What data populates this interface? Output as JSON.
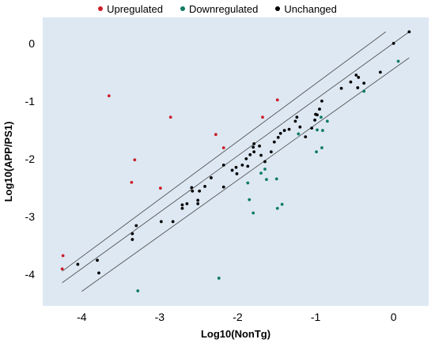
{
  "chart_data": {
    "type": "scatter",
    "xlabel": "Log10(NonTg)",
    "ylabel": "Log10(APP/PS1)",
    "xlim": [
      -4.5,
      0.45
    ],
    "ylim": [
      -4.55,
      0.45
    ],
    "x_ticks": [
      -4,
      -3,
      -2,
      -1,
      0
    ],
    "y_ticks": [
      0,
      -1,
      -2,
      -3,
      -4
    ],
    "x_tick_labels": [
      "-4",
      "-3",
      "-2",
      "-1",
      "0"
    ],
    "y_tick_labels": [
      "0",
      "-1",
      "-2",
      "-3",
      "-4"
    ],
    "background_color": "#dde8f3",
    "grid": false,
    "legend_position": "top",
    "reference_lines": [
      {
        "x": [
          -4.25,
          -0.1
        ],
        "y": [
          -3.95,
          0.2
        ]
      },
      {
        "x": [
          -4.25,
          0.2
        ],
        "y": [
          -4.15,
          0.2
        ]
      },
      {
        "x": [
          -4.0,
          0.2
        ],
        "y": [
          -4.3,
          -0.25
        ]
      }
    ],
    "series": [
      {
        "name": "Upregulated",
        "color": "#cc1f2a",
        "points": [
          [
            -4.24,
            -3.68
          ],
          [
            -4.25,
            -3.91
          ],
          [
            -3.65,
            -0.91
          ],
          [
            -3.32,
            -2.02
          ],
          [
            -3.36,
            -2.41
          ],
          [
            -2.99,
            -2.51
          ],
          [
            -2.86,
            -1.28
          ],
          [
            -2.28,
            -1.58
          ],
          [
            -2.18,
            -1.81
          ],
          [
            -1.68,
            -1.28
          ],
          [
            -1.49,
            -0.98
          ]
        ]
      },
      {
        "name": "Downregulated",
        "color": "#0f7b62",
        "points": [
          [
            -3.28,
            -4.29
          ],
          [
            -2.24,
            -4.07
          ],
          [
            -1.87,
            -2.42
          ],
          [
            -1.85,
            -2.71
          ],
          [
            -1.8,
            -2.94
          ],
          [
            -1.7,
            -2.25
          ],
          [
            -1.65,
            -2.18
          ],
          [
            -1.63,
            -2.36
          ],
          [
            -1.5,
            -2.35
          ],
          [
            -1.49,
            -2.86
          ],
          [
            -1.43,
            -2.79
          ],
          [
            -1.22,
            -1.57
          ],
          [
            -0.99,
            -1.88
          ],
          [
            -0.98,
            -1.5
          ],
          [
            -0.93,
            -1.28
          ],
          [
            -0.92,
            -1.81
          ],
          [
            -0.91,
            -1.51
          ],
          [
            -0.85,
            -1.35
          ],
          [
            -0.38,
            -0.83
          ],
          [
            0.06,
            -0.31
          ]
        ]
      },
      {
        "name": "Unchanged",
        "color": "#000000",
        "points": [
          [
            -4.05,
            -3.83
          ],
          [
            -3.8,
            -3.76
          ],
          [
            -3.78,
            -3.98
          ],
          [
            -3.35,
            -3.3
          ],
          [
            -3.35,
            -3.4
          ],
          [
            -3.3,
            -3.16
          ],
          [
            -2.98,
            -3.09
          ],
          [
            -2.83,
            -3.09
          ],
          [
            -2.71,
            -2.8
          ],
          [
            -2.71,
            -2.86
          ],
          [
            -2.65,
            -2.78
          ],
          [
            -2.59,
            -2.5
          ],
          [
            -2.58,
            -2.56
          ],
          [
            -2.51,
            -2.78
          ],
          [
            -2.51,
            -2.72
          ],
          [
            -2.49,
            -2.56
          ],
          [
            -2.42,
            -2.48
          ],
          [
            -2.34,
            -2.33
          ],
          [
            -2.18,
            -2.49
          ],
          [
            -2.18,
            -2.11
          ],
          [
            -2.07,
            -2.2
          ],
          [
            -2.02,
            -2.15
          ],
          [
            -2.01,
            -2.26
          ],
          [
            -1.94,
            -2.11
          ],
          [
            -1.89,
            -2.0
          ],
          [
            -1.87,
            -2.13
          ],
          [
            -1.84,
            -1.93
          ],
          [
            -1.8,
            -1.8
          ],
          [
            -1.79,
            -1.74
          ],
          [
            -1.79,
            -1.88
          ],
          [
            -1.72,
            -1.78
          ],
          [
            -1.7,
            -1.94
          ],
          [
            -1.65,
            -2.05
          ],
          [
            -1.57,
            -1.88
          ],
          [
            -1.53,
            -1.71
          ],
          [
            -1.48,
            -1.63
          ],
          [
            -1.45,
            -1.56
          ],
          [
            -1.4,
            -1.51
          ],
          [
            -1.34,
            -1.49
          ],
          [
            -1.26,
            -1.35
          ],
          [
            -1.24,
            -1.28
          ],
          [
            -1.2,
            -1.45
          ],
          [
            -1.13,
            -1.62
          ],
          [
            -1.05,
            -1.47
          ],
          [
            -1.01,
            -1.33
          ],
          [
            -1.0,
            -1.23
          ],
          [
            -0.98,
            -1.24
          ],
          [
            -0.95,
            -1.14
          ],
          [
            -0.92,
            -1.0
          ],
          [
            -0.67,
            -0.78
          ],
          [
            -0.55,
            -0.67
          ],
          [
            -0.48,
            -0.55
          ],
          [
            -0.46,
            -0.77
          ],
          [
            -0.45,
            -0.59
          ],
          [
            -0.38,
            -0.69
          ],
          [
            -0.17,
            -0.5
          ],
          [
            0.0,
            0.0
          ],
          [
            0.2,
            0.2
          ]
        ]
      }
    ]
  }
}
